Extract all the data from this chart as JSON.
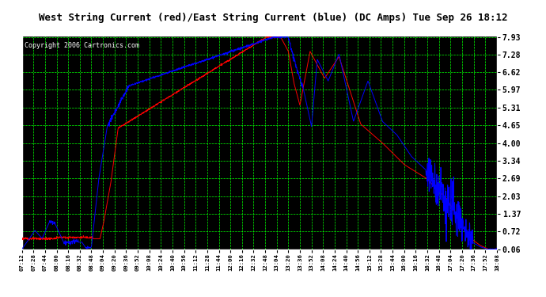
{
  "title": "West String Current (red)/East String Current (blue) (DC Amps) Tue Sep 26 18:12",
  "copyright": "Copyright 2006 Cartronics.com",
  "background_color": "#ffffff",
  "plot_bg_color": "#000000",
  "title_bg_color": "#ffffff",
  "grid_color": "#00ff00",
  "line_color_red": "#ff0000",
  "line_color_blue": "#0000ff",
  "ytick_labels": [
    "0.06",
    "0.72",
    "1.37",
    "2.03",
    "2.69",
    "3.34",
    "4.00",
    "4.65",
    "5.31",
    "5.97",
    "6.62",
    "7.28",
    "7.93"
  ],
  "ytick_values": [
    0.06,
    0.72,
    1.37,
    2.03,
    2.69,
    3.34,
    4.0,
    4.65,
    5.31,
    5.97,
    6.62,
    7.28,
    7.93
  ],
  "xtick_labels": [
    "07:12",
    "07:28",
    "07:44",
    "08:00",
    "08:16",
    "08:32",
    "08:48",
    "09:04",
    "09:20",
    "09:36",
    "09:52",
    "10:08",
    "10:24",
    "10:40",
    "10:56",
    "11:12",
    "11:28",
    "11:44",
    "12:00",
    "12:16",
    "12:32",
    "12:48",
    "13:04",
    "13:20",
    "13:36",
    "13:52",
    "14:08",
    "14:24",
    "14:40",
    "14:56",
    "15:12",
    "15:28",
    "15:44",
    "16:00",
    "16:16",
    "16:32",
    "16:48",
    "17:04",
    "17:20",
    "17:36",
    "17:52",
    "18:08"
  ],
  "ymin": 0.06,
  "ymax": 7.93
}
